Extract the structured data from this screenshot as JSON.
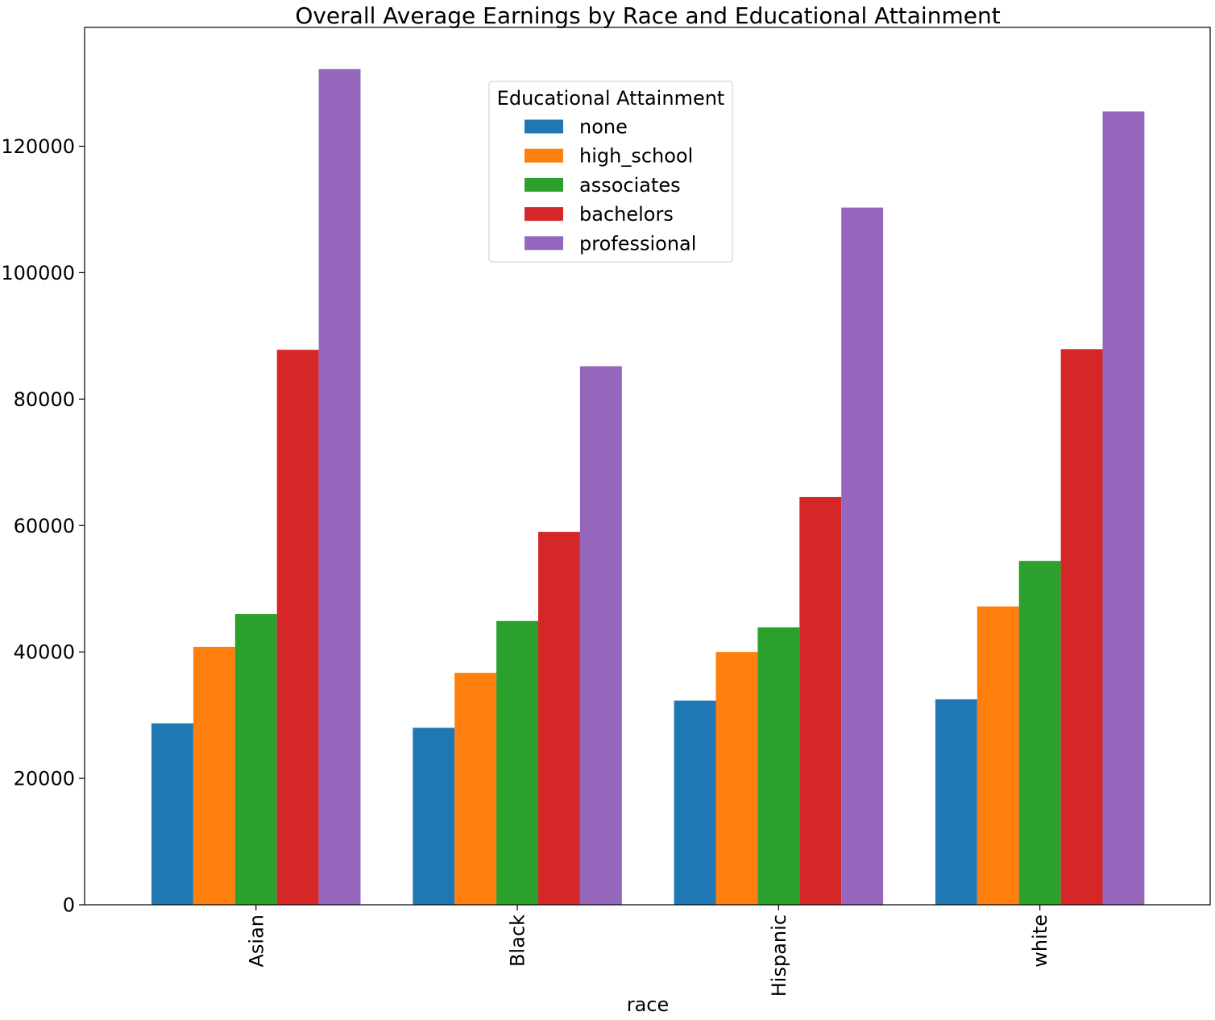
{
  "chart_data": {
    "type": "bar",
    "title": "Overall Average Earnings by Race and Educational Attainment",
    "xlabel": "race",
    "ylabel": "",
    "categories": [
      "Asian",
      "Black",
      "Hispanic",
      "white"
    ],
    "series": [
      {
        "name": "none",
        "color": "#1f77b4",
        "values": [
          28700,
          28000,
          32300,
          32500
        ]
      },
      {
        "name": "high_school",
        "color": "#ff7f0e",
        "values": [
          40800,
          36700,
          40000,
          47200
        ]
      },
      {
        "name": "associates",
        "color": "#2ca02c",
        "values": [
          46000,
          44900,
          43900,
          54400
        ]
      },
      {
        "name": "bachelors",
        "color": "#d62728",
        "values": [
          87800,
          59000,
          64500,
          87900
        ]
      },
      {
        "name": "professional",
        "color": "#9467bd",
        "values": [
          132200,
          85200,
          110300,
          125500
        ]
      }
    ],
    "ylim": [
      0,
      138800
    ],
    "yticks": [
      0,
      20000,
      40000,
      60000,
      80000,
      100000,
      120000
    ],
    "ytick_labels": [
      "0",
      "20000",
      "40000",
      "60000",
      "80000",
      "100000",
      "120000"
    ],
    "grid": false,
    "legend": {
      "title": "Educational Attainment",
      "position": "upper-center"
    }
  }
}
